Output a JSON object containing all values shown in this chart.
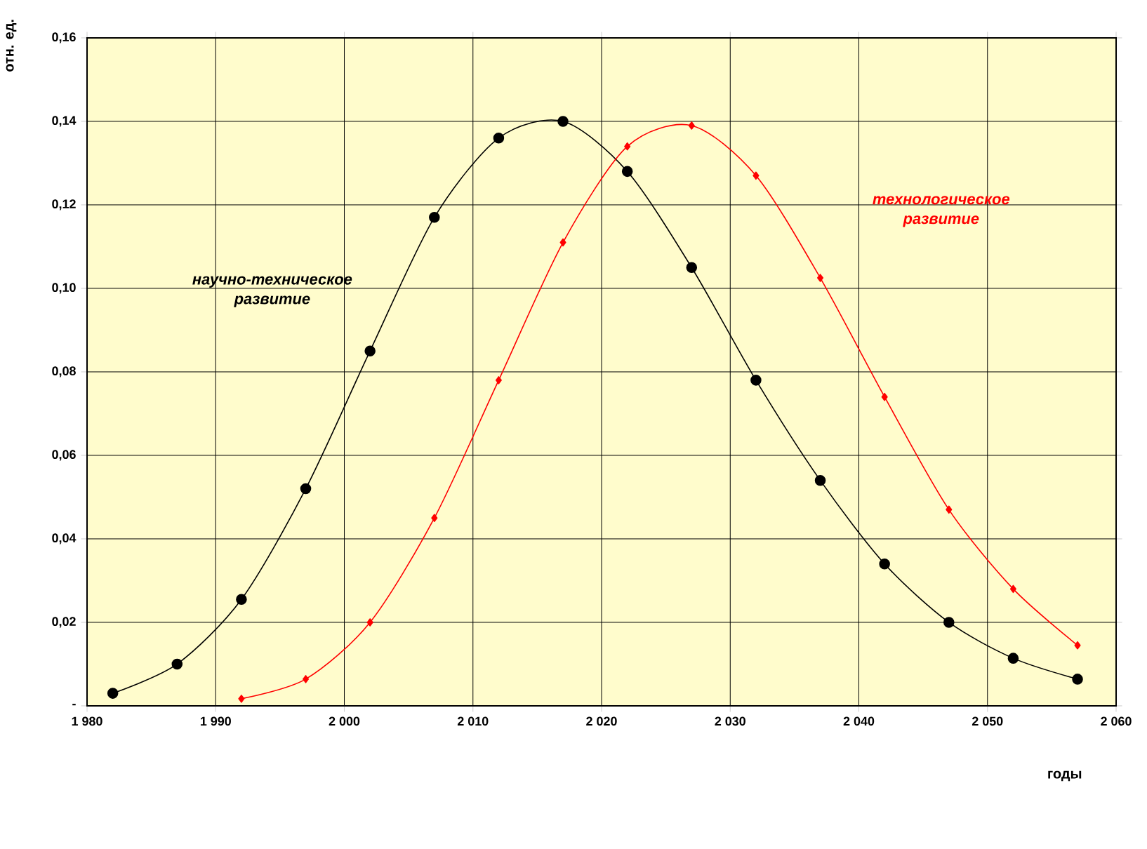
{
  "chart_data": {
    "type": "line",
    "xlabel": "годы",
    "ylabel": "отн. ед.",
    "xlim": [
      1980,
      2060
    ],
    "ylim": [
      0,
      0.16
    ],
    "xticks": [
      {
        "value": 1980,
        "label": "1 980"
      },
      {
        "value": 1990,
        "label": "1 990"
      },
      {
        "value": 2000,
        "label": "2 000"
      },
      {
        "value": 2010,
        "label": "2 010"
      },
      {
        "value": 2020,
        "label": "2 020"
      },
      {
        "value": 2030,
        "label": "2 030"
      },
      {
        "value": 2040,
        "label": "2 040"
      },
      {
        "value": 2050,
        "label": "2 050"
      },
      {
        "value": 2060,
        "label": "2 060"
      }
    ],
    "yticks": [
      {
        "value": 0,
        "label": "-"
      },
      {
        "value": 0.02,
        "label": "0,02"
      },
      {
        "value": 0.04,
        "label": "0,04"
      },
      {
        "value": 0.06,
        "label": "0,06"
      },
      {
        "value": 0.08,
        "label": "0,08"
      },
      {
        "value": 0.1,
        "label": "0,10"
      },
      {
        "value": 0.12,
        "label": "0,12"
      },
      {
        "value": 0.14,
        "label": "0,14"
      },
      {
        "value": 0.16,
        "label": "0,16"
      }
    ],
    "grid": true,
    "series": [
      {
        "name": "научно-техническое развитие",
        "color": "#000000",
        "marker": "circle",
        "x": [
          1982,
          1987,
          1992,
          1997,
          2002,
          2007,
          2012,
          2017,
          2022,
          2027,
          2032,
          2037,
          2042,
          2047,
          2052,
          2057
        ],
        "values": [
          0.003,
          0.01,
          0.0255,
          0.052,
          0.085,
          0.117,
          0.136,
          0.14,
          0.128,
          0.105,
          0.078,
          0.054,
          0.034,
          0.02,
          0.0114,
          0.0064
        ]
      },
      {
        "name": "технологическое развитие",
        "color": "#ff0000",
        "marker": "diamond",
        "x": [
          1992,
          1997,
          2002,
          2007,
          2012,
          2017,
          2022,
          2027,
          2032,
          2037,
          2042,
          2047,
          2052,
          2057
        ],
        "values": [
          0.0017,
          0.0064,
          0.02,
          0.045,
          0.078,
          0.111,
          0.134,
          0.139,
          0.127,
          0.1025,
          0.074,
          0.047,
          0.028,
          0.0145
        ]
      }
    ]
  }
}
